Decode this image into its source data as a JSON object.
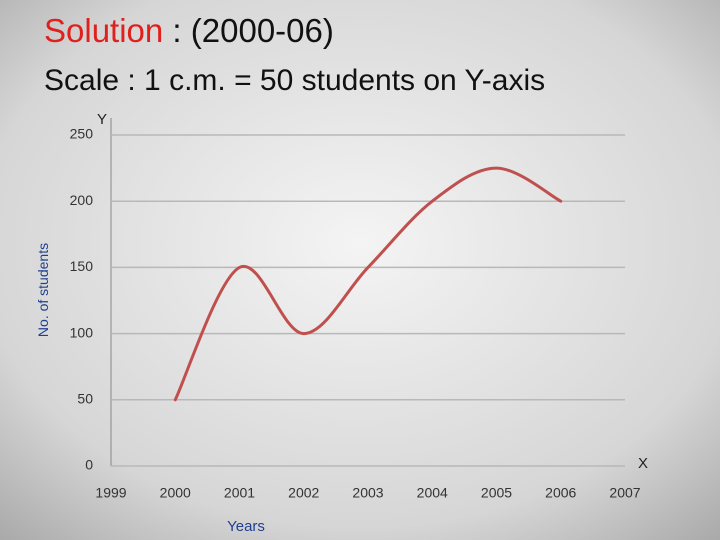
{
  "chart_data": {
    "type": "line",
    "title": {
      "highlight": "Solution",
      "rest": " : (2000-06)"
    },
    "title_highlight_color": "#e0201c",
    "subtitle": "Scale : 1 c.m. = 50 students on Y-axis",
    "y_axis_letter": "Y",
    "x_axis_letter": "X",
    "y_label": "No. of students",
    "x_label": "Years",
    "x": [
      2000,
      2001,
      2002,
      2003,
      2004,
      2005,
      2006
    ],
    "values": [
      50,
      150,
      100,
      150,
      200,
      225,
      200
    ],
    "color": "#c0504d",
    "smooth": true,
    "xlim": [
      1999,
      2007
    ],
    "xticks": [
      1999,
      2000,
      2001,
      2002,
      2003,
      2004,
      2005,
      2006,
      2007
    ],
    "ylim": [
      0,
      250
    ],
    "yticks": [
      0,
      50,
      100,
      150,
      200,
      250
    ],
    "grid": true
  }
}
